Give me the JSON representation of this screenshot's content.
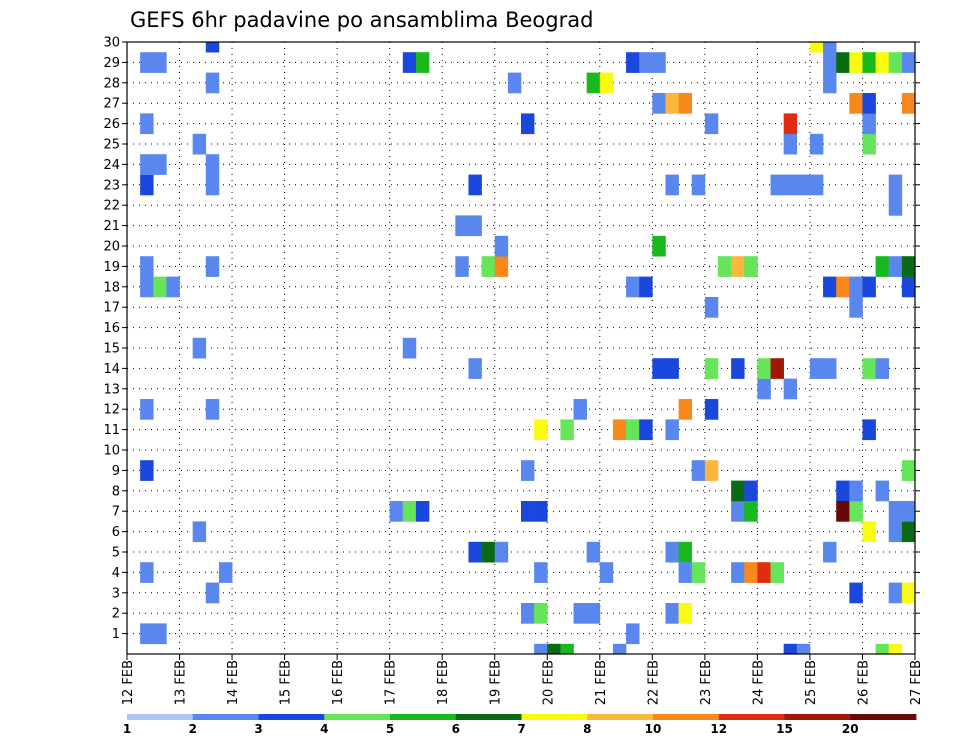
{
  "chart_data": {
    "type": "heatmap",
    "title": "GEFS 6hr padavine po ansamblima Beograd",
    "xlabel": "",
    "ylabel": "",
    "x_ticks": [
      "12 FEB",
      "13 FEB",
      "14 FEB",
      "15 FEB",
      "16 FEB",
      "17 FEB",
      "18 FEB",
      "19 FEB",
      "20 FEB",
      "21 FEB",
      "22 FEB",
      "23 FEB",
      "24 FEB",
      "25 FEB",
      "26 FEB",
      "27 FEB"
    ],
    "x_range_days": [
      0,
      15
    ],
    "y_ticks": [
      1,
      2,
      3,
      4,
      5,
      6,
      7,
      8,
      9,
      10,
      11,
      12,
      13,
      14,
      15,
      16,
      17,
      18,
      19,
      20,
      21,
      22,
      23,
      24,
      25,
      26,
      27,
      28,
      29,
      30
    ],
    "y_range": [
      0,
      30
    ],
    "grid": true,
    "legend_placement": "bottom",
    "legend_labels": [
      "1",
      "2",
      "3",
      "4",
      "5",
      "6",
      "7",
      "8",
      "10",
      "12",
      "15",
      "20"
    ],
    "colors": [
      "#aec4f5",
      "#5a87ee",
      "#1a48dd",
      "#66e45a",
      "#19b81c",
      "#0a6b14",
      "#fbfb10",
      "#fbb63c",
      "#f8881c",
      "#e02c10",
      "#a01808",
      "#6a0808"
    ],
    "cell_days": 0.25,
    "cells": [
      [
        0.25,
        1,
        1
      ],
      [
        0.5,
        1,
        1
      ],
      [
        0.25,
        23,
        2
      ],
      [
        0.25,
        24,
        1
      ],
      [
        0.5,
        24,
        1
      ],
      [
        0.25,
        26,
        1
      ],
      [
        0.25,
        29,
        1
      ],
      [
        0.5,
        29,
        1
      ],
      [
        0.25,
        4,
        1
      ],
      [
        0.25,
        9,
        2
      ],
      [
        0.25,
        12,
        1
      ],
      [
        0.25,
        18,
        1
      ],
      [
        0.5,
        18,
        3
      ],
      [
        0.75,
        18,
        1
      ],
      [
        0.25,
        19,
        1
      ],
      [
        1.25,
        6,
        1
      ],
      [
        1.25,
        15,
        1
      ],
      [
        1.25,
        25,
        1
      ],
      [
        1.5,
        3,
        1
      ],
      [
        1.5,
        12,
        1
      ],
      [
        1.5,
        19,
        1
      ],
      [
        1.5,
        23,
        1
      ],
      [
        1.5,
        24,
        1
      ],
      [
        1.5,
        28,
        1
      ],
      [
        1.5,
        30,
        2
      ],
      [
        1.75,
        4,
        1
      ],
      [
        5.0,
        7,
        1
      ],
      [
        5.25,
        7,
        3
      ],
      [
        5.5,
        7,
        2
      ],
      [
        5.25,
        15,
        1
      ],
      [
        5.25,
        29,
        2
      ],
      [
        5.5,
        29,
        4
      ],
      [
        6.25,
        21,
        1
      ],
      [
        6.5,
        21,
        1
      ],
      [
        6.25,
        19,
        1
      ],
      [
        6.5,
        14,
        1
      ],
      [
        6.5,
        5,
        2
      ],
      [
        6.5,
        23,
        2
      ],
      [
        6.75,
        5,
        5
      ],
      [
        6.75,
        19,
        3
      ],
      [
        7.0,
        19,
        8
      ],
      [
        7.0,
        20,
        1
      ],
      [
        7.0,
        5,
        1
      ],
      [
        7.25,
        28,
        1
      ],
      [
        7.5,
        2,
        1
      ],
      [
        7.5,
        7,
        2
      ],
      [
        7.75,
        7,
        2
      ],
      [
        7.5,
        9,
        1
      ],
      [
        7.5,
        26,
        2
      ],
      [
        7.75,
        2,
        3
      ],
      [
        7.75,
        4,
        1
      ],
      [
        7.75,
        11,
        6
      ],
      [
        7.75,
        0,
        1
      ],
      [
        8.0,
        0,
        5
      ],
      [
        8.25,
        0,
        4
      ],
      [
        8.25,
        11,
        3
      ],
      [
        8.5,
        2,
        1
      ],
      [
        8.75,
        2,
        1
      ],
      [
        8.5,
        12,
        1
      ],
      [
        8.75,
        5,
        1
      ],
      [
        8.75,
        28,
        4
      ],
      [
        9.0,
        28,
        6
      ],
      [
        9.0,
        4,
        1
      ],
      [
        9.25,
        0,
        1
      ],
      [
        9.5,
        1,
        1
      ],
      [
        9.25,
        11,
        8
      ],
      [
        9.5,
        11,
        3
      ],
      [
        9.75,
        11,
        2
      ],
      [
        9.5,
        18,
        1
      ],
      [
        9.75,
        18,
        2
      ],
      [
        9.5,
        29,
        2
      ],
      [
        9.75,
        29,
        1
      ],
      [
        10.0,
        29,
        1
      ],
      [
        10.0,
        27,
        1
      ],
      [
        10.25,
        27,
        7
      ],
      [
        10.5,
        27,
        8
      ],
      [
        10.0,
        14,
        2
      ],
      [
        10.25,
        14,
        2
      ],
      [
        10.0,
        20,
        4
      ],
      [
        10.25,
        2,
        1
      ],
      [
        10.5,
        2,
        6
      ],
      [
        10.25,
        5,
        1
      ],
      [
        10.5,
        5,
        4
      ],
      [
        10.25,
        11,
        1
      ],
      [
        10.25,
        23,
        1
      ],
      [
        10.5,
        4,
        1
      ],
      [
        10.5,
        12,
        8
      ],
      [
        10.75,
        4,
        3
      ],
      [
        10.75,
        9,
        1
      ],
      [
        10.75,
        23,
        1
      ],
      [
        11.0,
        9,
        7
      ],
      [
        11.0,
        14,
        3
      ],
      [
        11.0,
        12,
        2
      ],
      [
        11.0,
        17,
        1
      ],
      [
        11.0,
        26,
        1
      ],
      [
        11.25,
        19,
        3
      ],
      [
        11.5,
        19,
        7
      ],
      [
        11.75,
        19,
        3
      ],
      [
        11.5,
        14,
        2
      ],
      [
        11.5,
        4,
        1
      ],
      [
        11.5,
        7,
        1
      ],
      [
        11.5,
        8,
        5
      ],
      [
        11.75,
        8,
        2
      ],
      [
        11.75,
        7,
        4
      ],
      [
        11.75,
        4,
        8
      ],
      [
        12.0,
        4,
        9
      ],
      [
        12.25,
        4,
        3
      ],
      [
        12.0,
        13,
        1
      ],
      [
        12.0,
        14,
        3
      ],
      [
        12.25,
        14,
        10
      ],
      [
        12.25,
        23,
        1
      ],
      [
        12.5,
        23,
        1
      ],
      [
        12.75,
        23,
        1
      ],
      [
        13.0,
        23,
        1
      ],
      [
        12.5,
        13,
        1
      ],
      [
        12.5,
        0,
        2
      ],
      [
        12.5,
        25,
        1
      ],
      [
        12.5,
        26,
        9
      ],
      [
        12.75,
        0,
        1
      ],
      [
        13.0,
        25,
        1
      ],
      [
        13.0,
        14,
        1
      ],
      [
        13.25,
        14,
        1
      ],
      [
        13.0,
        30,
        6
      ],
      [
        13.25,
        30,
        1
      ],
      [
        13.25,
        28,
        1
      ],
      [
        13.25,
        5,
        1
      ],
      [
        13.25,
        18,
        2
      ],
      [
        13.25,
        29,
        1
      ],
      [
        13.5,
        29,
        5
      ],
      [
        13.5,
        8,
        2
      ],
      [
        13.5,
        7,
        11
      ],
      [
        13.75,
        7,
        3
      ],
      [
        13.5,
        18,
        8
      ],
      [
        13.75,
        18,
        1
      ],
      [
        13.75,
        17,
        1
      ],
      [
        13.75,
        8,
        1
      ],
      [
        13.75,
        3,
        2
      ],
      [
        13.75,
        27,
        8
      ],
      [
        13.75,
        29,
        6
      ],
      [
        14.0,
        6,
        6
      ],
      [
        14.0,
        11,
        2
      ],
      [
        14.0,
        14,
        3
      ],
      [
        14.0,
        18,
        2
      ],
      [
        14.0,
        25,
        3
      ],
      [
        14.0,
        26,
        1
      ],
      [
        14.0,
        27,
        2
      ],
      [
        14.0,
        29,
        4
      ],
      [
        14.25,
        14,
        1
      ],
      [
        14.25,
        29,
        6
      ],
      [
        14.25,
        19,
        4
      ],
      [
        14.25,
        0,
        3
      ],
      [
        14.25,
        8,
        1
      ],
      [
        14.5,
        0,
        6
      ],
      [
        14.5,
        3,
        1
      ],
      [
        14.5,
        6,
        1
      ],
      [
        14.5,
        7,
        1
      ],
      [
        14.5,
        19,
        1
      ],
      [
        14.5,
        22,
        1
      ],
      [
        14.5,
        23,
        1
      ],
      [
        14.5,
        29,
        3
      ],
      [
        14.75,
        3,
        6
      ],
      [
        14.75,
        6,
        5
      ],
      [
        14.75,
        7,
        1
      ],
      [
        14.75,
        9,
        3
      ],
      [
        14.75,
        18,
        2
      ],
      [
        14.75,
        19,
        5
      ],
      [
        14.75,
        27,
        8
      ],
      [
        14.75,
        29,
        1
      ]
    ]
  }
}
